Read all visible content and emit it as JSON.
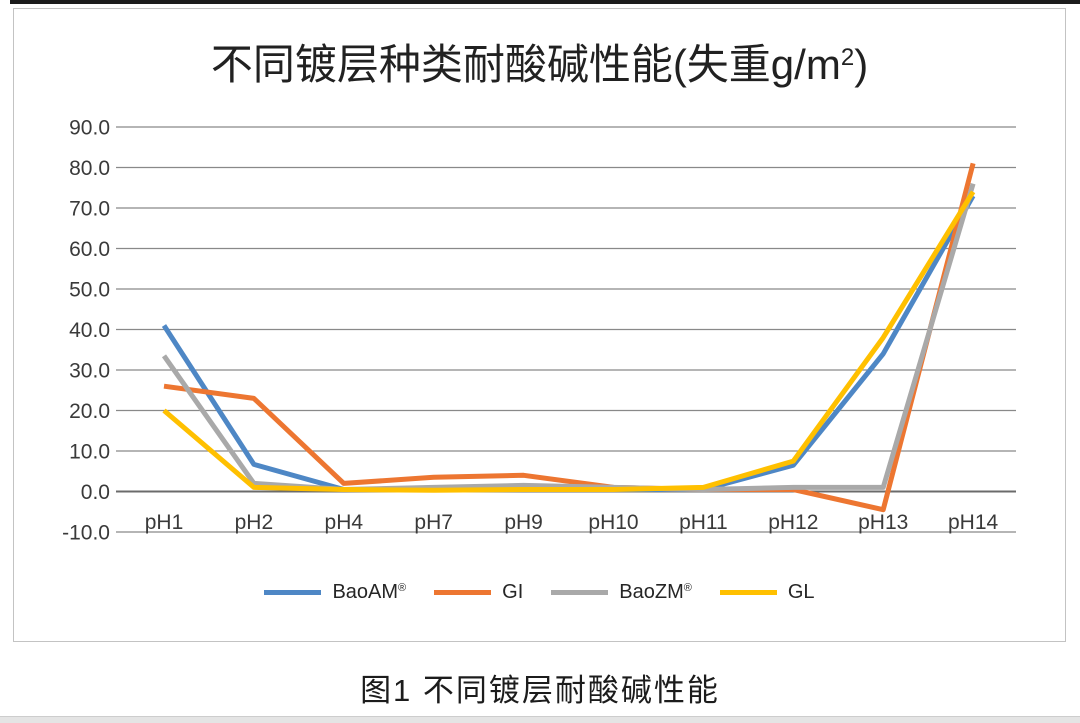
{
  "page": {
    "caption": "图1 不同镀层耐酸碱性能"
  },
  "chart": {
    "title_main": "不同镀层种类耐酸碱性能(失重g/m",
    "title_sup": "2",
    "title_end": ")"
  },
  "chart_data": {
    "type": "line",
    "title": "不同镀层种类耐酸碱性能(失重g/m²)",
    "categories": [
      "pH1",
      "pH2",
      "pH4",
      "pH7",
      "pH9",
      "pH10",
      "pH11",
      "pH12",
      "pH13",
      "pH14"
    ],
    "series": [
      {
        "name": "BaoAM",
        "name_sup": "®",
        "color": "#4E87C5",
        "values": [
          41,
          6.7,
          0.5,
          0.5,
          0.8,
          0.5,
          0.5,
          6.5,
          34,
          73
        ]
      },
      {
        "name": "GI",
        "name_sup": "",
        "color": "#ED7631",
        "values": [
          26,
          23,
          2,
          3.5,
          4,
          1,
          0.5,
          0.5,
          -4.5,
          81
        ]
      },
      {
        "name": "BaoZM",
        "name_sup": "®",
        "color": "#A9A9A9",
        "values": [
          33.5,
          2,
          0.5,
          1,
          1.5,
          1,
          0.5,
          1,
          1,
          76
        ]
      },
      {
        "name": "GL",
        "name_sup": "",
        "color": "#FFC000",
        "values": [
          20,
          1,
          0.5,
          0.3,
          0.5,
          0.5,
          1,
          7.5,
          38,
          74
        ]
      }
    ],
    "ylim": [
      -10,
      90
    ],
    "ytick_step": 10,
    "ytick_labels": [
      "90.0",
      "80.0",
      "70.0",
      "60.0",
      "50.0",
      "40.0",
      "30.0",
      "20.0",
      "10.0",
      "0.0",
      "-10.0"
    ],
    "grid": true,
    "legend_position": "bottom",
    "axis_text_color": "#3a3a3a",
    "gridline_color": "#898989",
    "zero_line_color": "#6b6b6b"
  }
}
